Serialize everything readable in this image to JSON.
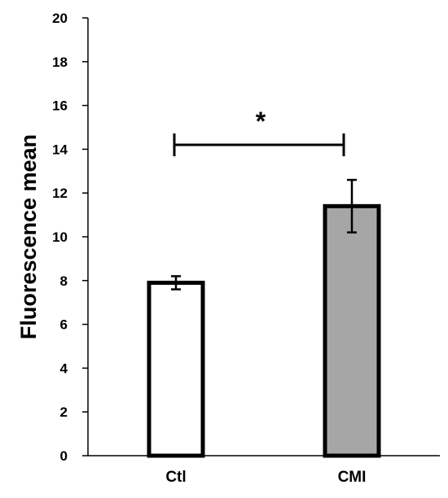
{
  "chart_data": {
    "type": "bar",
    "ylabel": "Fluorescence mean",
    "xlabel": "",
    "ylim": [
      0,
      20
    ],
    "yticks": [
      0,
      2,
      4,
      6,
      8,
      10,
      12,
      14,
      16,
      18,
      20
    ],
    "grid": false,
    "categories": [
      "Ctl",
      "CMI"
    ],
    "values": [
      7.9,
      11.4
    ],
    "errors": [
      0.3,
      1.2
    ],
    "bar_colors": [
      "#ffffff",
      "#a6a6a6"
    ],
    "significance": {
      "label": "*",
      "between": [
        "Ctl",
        "CMI"
      ],
      "y": 14.2
    }
  }
}
